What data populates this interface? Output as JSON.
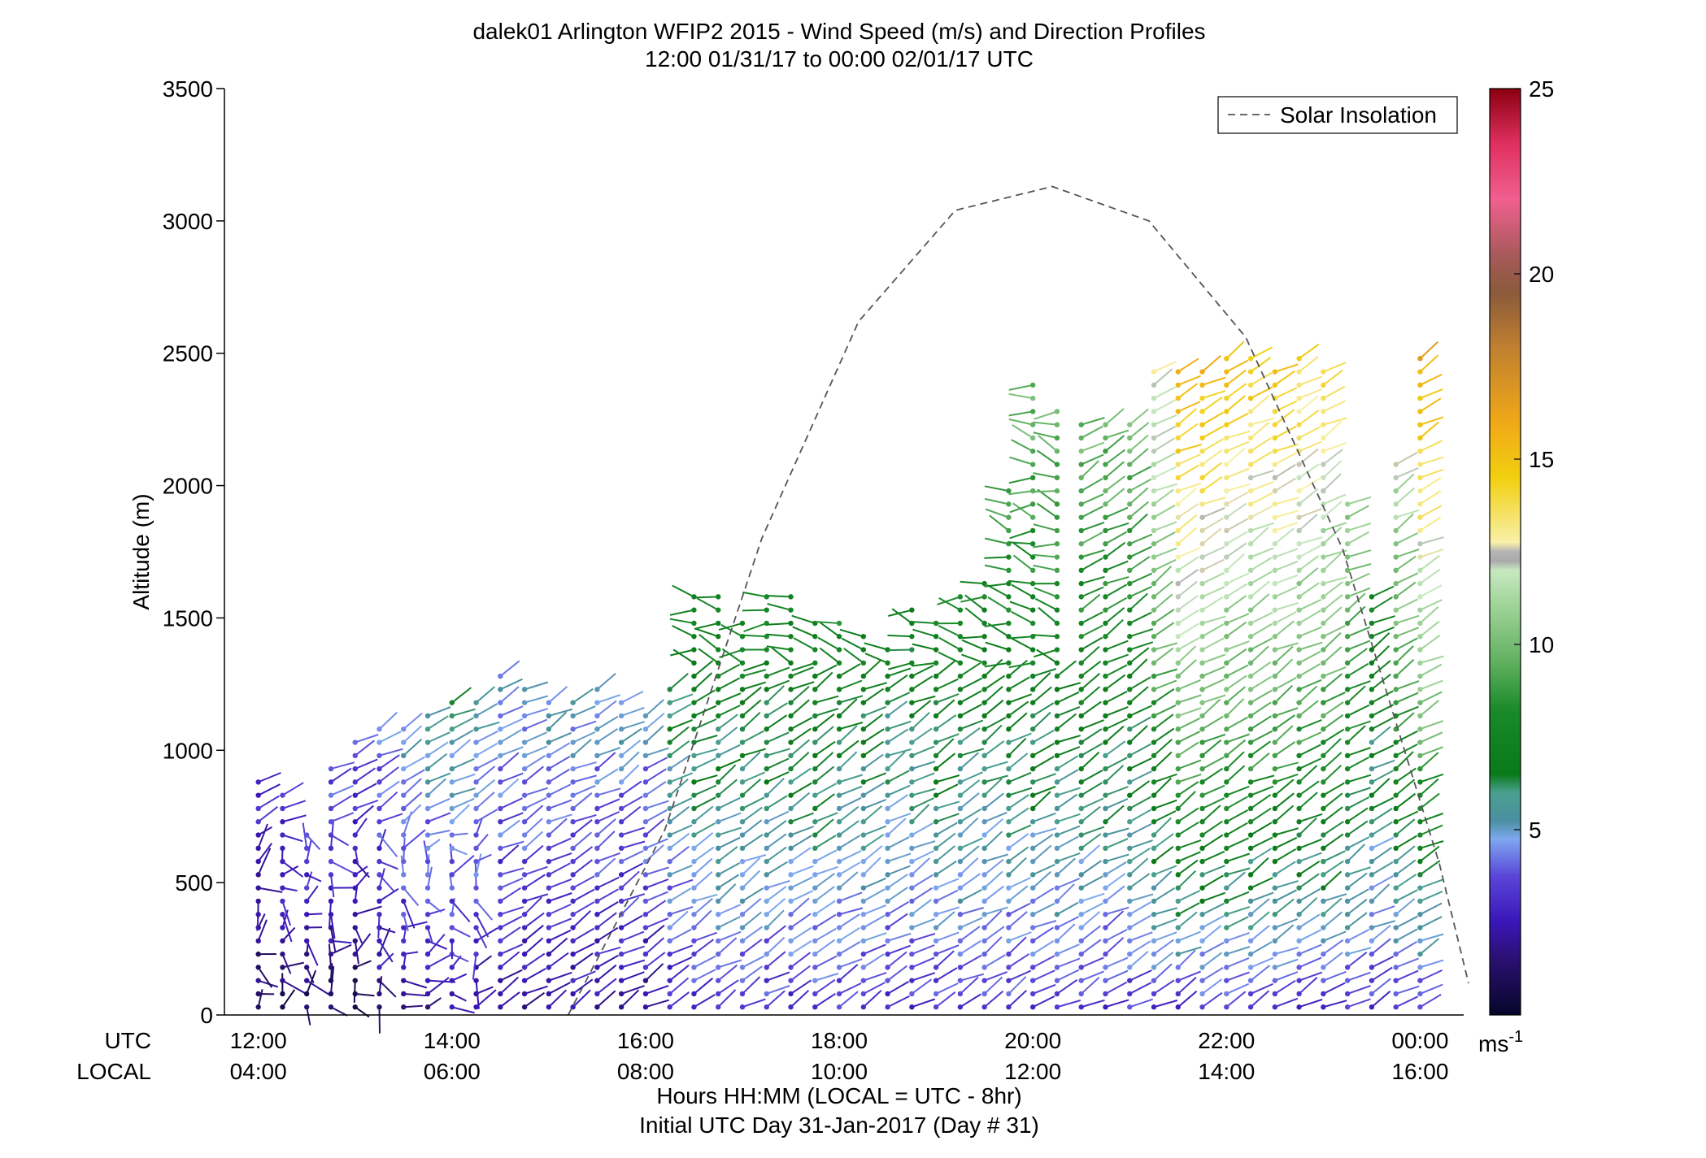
{
  "chart_data": {
    "type": "scatter",
    "subtype": "wind-barb-profile",
    "title": "dalek01 Arlington WFIP2 2015 - Wind Speed (m/s) and Direction Profiles",
    "subtitle": "12:00 01/31/17 to 00:00 02/01/17  UTC",
    "ylabel": "Altitude (m)",
    "xlabel": "Hours HH:MM  (LOCAL = UTC - 8hr)",
    "xlabel2": "Initial UTC Day 31-Jan-2017 (Day # 31)",
    "ylim": [
      0,
      3500
    ],
    "xlim_hours_utc": [
      11.65,
      24.45
    ],
    "yticks": [
      "0",
      "500",
      "1000",
      "1500",
      "2000",
      "2500",
      "3000",
      "3500"
    ],
    "xrow_utc_label": "UTC",
    "xrow_local_label": "LOCAL",
    "xticks_utc": [
      "12:00",
      "14:00",
      "16:00",
      "18:00",
      "20:00",
      "22:00",
      "00:00"
    ],
    "xticks_local": [
      "04:00",
      "06:00",
      "08:00",
      "10:00",
      "12:00",
      "14:00",
      "16:00"
    ],
    "legend": {
      "entries": [
        "Solar Insolation"
      ],
      "position": "top-right"
    },
    "colorbar": {
      "unit": "ms",
      "unit_exp": "-1",
      "range": [
        0,
        25
      ],
      "ticks": [
        "5",
        "10",
        "15",
        "20",
        "25"
      ]
    },
    "series": [
      {
        "name": "Solar Insolation",
        "style": "dashed",
        "x_hours_utc": [
          15.2,
          16.2,
          17.2,
          18.2,
          19.2,
          20.2,
          21.2,
          22.2,
          23.2,
          24.2,
          24.5
        ],
        "y": [
          0,
          700,
          1800,
          2620,
          3040,
          3130,
          3000,
          2560,
          1760,
          570,
          120
        ]
      }
    ],
    "profiles_note": "Wind barbs plotted every ~15 min (x, UTC hours) at ~50 m altitude gates; color encodes speed (m/s)",
    "profiles": [
      {
        "t": 12.0,
        "top_m": 900,
        "speed_low": 1.0,
        "speed_high": 3.0
      },
      {
        "t": 12.5,
        "top_m": 750,
        "speed_low": 1.0,
        "speed_high": 4.0
      },
      {
        "t": 13.0,
        "top_m": 1050,
        "speed_low": 1.0,
        "speed_high": 4.0
      },
      {
        "t": 13.5,
        "top_m": 1100,
        "speed_low": 2.0,
        "speed_high": 5.0
      },
      {
        "t": 14.0,
        "top_m": 1250,
        "speed_low": 2.0,
        "speed_high": 6.0
      },
      {
        "t": 14.5,
        "top_m": 1250,
        "speed_low": 2.0,
        "speed_high": 5.0
      },
      {
        "t": 15.0,
        "top_m": 1250,
        "speed_low": 2.0,
        "speed_high": 5.0
      },
      {
        "t": 15.5,
        "top_m": 1250,
        "speed_low": 2.0,
        "speed_high": 5.0
      },
      {
        "t": 16.0,
        "top_m": 1100,
        "speed_low": 2.0,
        "speed_high": 5.0
      },
      {
        "t": 16.5,
        "top_m": 1550,
        "speed_low": 3.0,
        "speed_high": 8.0
      },
      {
        "t": 17.0,
        "top_m": 1550,
        "speed_low": 3.0,
        "speed_high": 8.0
      },
      {
        "t": 17.5,
        "top_m": 1550,
        "speed_low": 3.0,
        "speed_high": 8.0
      },
      {
        "t": 18.0,
        "top_m": 1500,
        "speed_low": 3.0,
        "speed_high": 8.0
      },
      {
        "t": 18.5,
        "top_m": 1450,
        "speed_low": 3.0,
        "speed_high": 7.0
      },
      {
        "t": 19.0,
        "top_m": 1550,
        "speed_low": 3.0,
        "speed_high": 8.0
      },
      {
        "t": 19.5,
        "top_m": 1650,
        "speed_low": 3.0,
        "speed_high": 8.0
      },
      {
        "t": 20.0,
        "top_m": 2350,
        "speed_low": 3.0,
        "speed_high": 10.0
      },
      {
        "t": 20.5,
        "top_m": 2300,
        "speed_low": 3.0,
        "speed_high": 10.0
      },
      {
        "t": 21.0,
        "top_m": 2300,
        "speed_low": 3.0,
        "speed_high": 10.0
      },
      {
        "t": 21.5,
        "top_m": 2500,
        "speed_low": 3.0,
        "speed_high": 16.0
      },
      {
        "t": 22.0,
        "top_m": 2500,
        "speed_low": 3.0,
        "speed_high": 15.0
      },
      {
        "t": 22.5,
        "top_m": 2500,
        "speed_low": 3.0,
        "speed_high": 15.0
      },
      {
        "t": 23.0,
        "top_m": 2450,
        "speed_low": 3.0,
        "speed_high": 14.0
      },
      {
        "t": 23.5,
        "top_m": 1600,
        "speed_low": 3.0,
        "speed_high": 8.0
      },
      {
        "t": 24.0,
        "top_m": 2500,
        "speed_low": 3.0,
        "speed_high": 16.0
      }
    ]
  }
}
